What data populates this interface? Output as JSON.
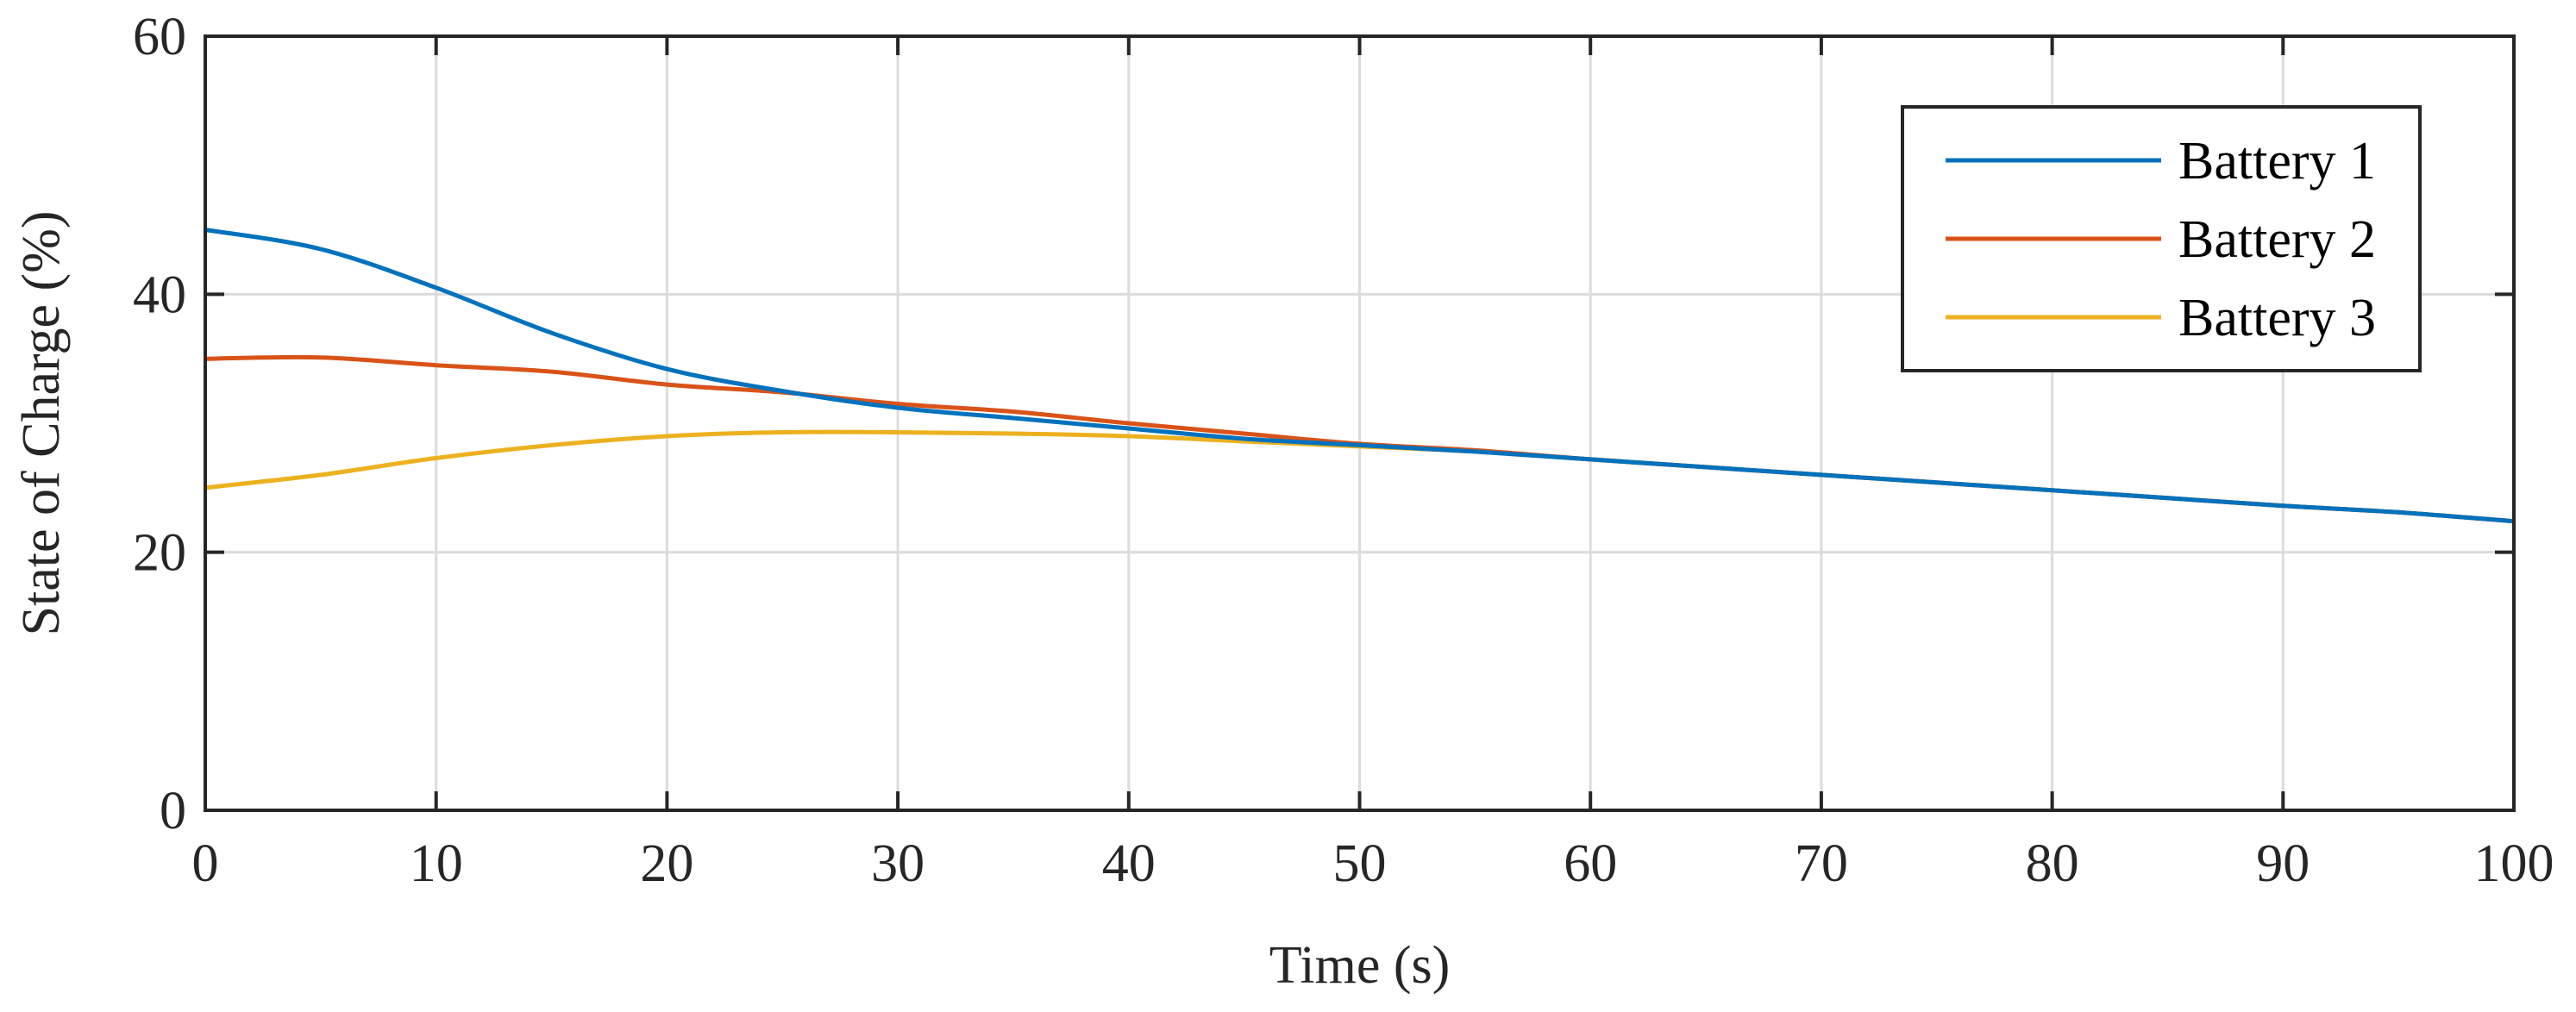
{
  "chart_data": {
    "type": "line",
    "title": "",
    "xlabel": "Time (s)",
    "ylabel": "State of Charge (%)",
    "xlim": [
      0,
      100
    ],
    "ylim": [
      0,
      60
    ],
    "xticks": [
      "0",
      "10",
      "20",
      "30",
      "40",
      "50",
      "60",
      "70",
      "80",
      "90",
      "100"
    ],
    "yticks": [
      "0",
      "20",
      "40",
      "60"
    ],
    "grid": true,
    "legend_position": "top-right",
    "x": [
      0,
      5,
      10,
      15,
      20,
      25,
      30,
      35,
      40,
      45,
      50,
      55,
      60,
      65,
      70,
      75,
      80,
      85,
      90,
      95,
      100
    ],
    "series": [
      {
        "name": "Battery 1",
        "color": "#0072BD",
        "values": [
          45.0,
          43.5,
          40.5,
          37.0,
          34.2,
          32.5,
          31.2,
          30.4,
          29.6,
          28.8,
          28.3,
          27.8,
          27.2,
          26.6,
          26.0,
          25.4,
          24.8,
          24.2,
          23.6,
          23.1,
          22.4
        ]
      },
      {
        "name": "Battery 2",
        "color": "#D95319",
        "values": [
          35.0,
          35.1,
          34.5,
          34.0,
          33.0,
          32.4,
          31.5,
          30.9,
          30.0,
          29.2,
          28.4,
          27.9,
          27.2,
          26.6,
          26.0,
          25.4,
          24.8,
          24.2,
          23.6,
          23.1,
          22.4
        ]
      },
      {
        "name": "Battery 3",
        "color": "#EDB120",
        "values": [
          25.0,
          26.0,
          27.3,
          28.3,
          29.0,
          29.3,
          29.3,
          29.2,
          29.0,
          28.6,
          28.2,
          27.8,
          27.2,
          26.6,
          26.0,
          25.4,
          24.8,
          24.2,
          23.6,
          23.1,
          22.4
        ]
      }
    ]
  }
}
